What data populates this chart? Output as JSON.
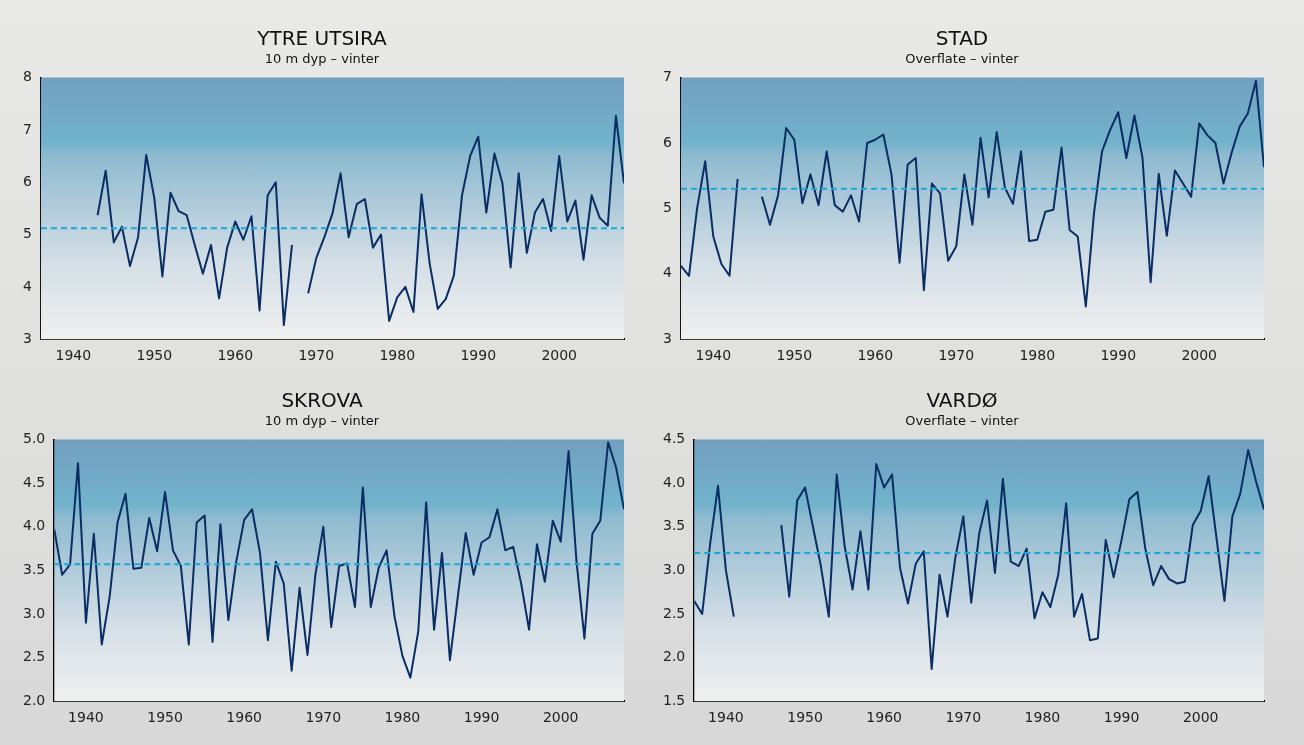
{
  "chart_data": [
    {
      "type": "line",
      "title": "YTRE UTSIRA",
      "subtitle": "10 m dyp – vinter",
      "x": [
        1943,
        1944,
        1945,
        1946,
        1947,
        1948,
        1949,
        1950,
        1951,
        1952,
        1953,
        1954,
        1955,
        1956,
        1957,
        1958,
        1959,
        1960,
        1961,
        1962,
        1963,
        1964,
        1965,
        1966,
        1967,
        1968,
        1969,
        1970,
        1971,
        1972,
        1973,
        1974,
        1975,
        1976,
        1977,
        1978,
        1979,
        1980,
        1981,
        1982,
        1983,
        1984,
        1985,
        1986,
        1987,
        1988,
        1989,
        1990,
        1991,
        1992,
        1993,
        1994,
        1995,
        1996,
        1997,
        1998,
        1999,
        2000,
        2001,
        2002,
        2003,
        2004,
        2005,
        2006,
        2007,
        2008
      ],
      "xlim": [
        1936,
        2008
      ],
      "xticks": [
        1940,
        1950,
        1960,
        1970,
        1980,
        1990,
        2000
      ],
      "ylim": [
        3,
        8
      ],
      "yticks": [
        3,
        4,
        5,
        6,
        7,
        8
      ],
      "grid": false,
      "legend": false,
      "marker": "none",
      "line_style": "solid",
      "series": [
        {
          "color": "#0a2d63",
          "values": [
            5.37,
            6.22,
            4.85,
            5.15,
            4.4,
            4.95,
            6.52,
            5.7,
            4.2,
            5.8,
            5.45,
            5.37,
            4.8,
            4.25,
            4.8,
            3.78,
            4.75,
            5.25,
            4.9,
            5.35,
            3.55,
            5.75,
            6.0,
            3.27,
            4.8,
            null,
            3.88,
            4.55,
            4.95,
            5.4,
            6.17,
            4.95,
            5.58,
            5.68,
            4.75,
            5.0,
            3.35,
            3.8,
            4.0,
            3.52,
            5.77,
            4.45,
            3.58,
            3.77,
            4.22,
            5.75,
            6.5,
            6.87,
            5.42,
            6.55,
            5.97,
            4.37,
            6.17,
            4.65,
            5.42,
            5.68,
            5.07,
            6.5,
            5.25,
            5.65,
            4.52,
            5.75,
            5.32,
            5.17,
            7.27,
            5.98
          ]
        }
      ],
      "ref_lines": [
        {
          "axis": "y",
          "value": 5.12,
          "color": "#19a8d8",
          "line_style": "dashed"
        }
      ]
    },
    {
      "type": "line",
      "title": "STAD",
      "subtitle": "Overflate – vinter",
      "x": [
        1936,
        1937,
        1938,
        1939,
        1940,
        1941,
        1942,
        1943,
        1944,
        1945,
        1946,
        1947,
        1948,
        1949,
        1950,
        1951,
        1952,
        1953,
        1954,
        1955,
        1956,
        1957,
        1958,
        1959,
        1960,
        1961,
        1962,
        1963,
        1964,
        1965,
        1966,
        1967,
        1968,
        1969,
        1970,
        1971,
        1972,
        1973,
        1974,
        1975,
        1976,
        1977,
        1978,
        1979,
        1980,
        1981,
        1982,
        1983,
        1984,
        1985,
        1986,
        1987,
        1988,
        1989,
        1990,
        1991,
        1992,
        1993,
        1994,
        1995,
        1996,
        1997,
        1998,
        1999,
        2000,
        2001,
        2002,
        2003,
        2004,
        2005,
        2006,
        2007,
        2008
      ],
      "xlim": [
        1936,
        2008
      ],
      "xticks": [
        1940,
        1950,
        1960,
        1970,
        1980,
        1990,
        2000
      ],
      "ylim": [
        3,
        7
      ],
      "yticks": [
        3,
        4,
        5,
        6,
        7
      ],
      "grid": false,
      "legend": false,
      "marker": "none",
      "line_style": "solid",
      "series": [
        {
          "color": "#0a2d63",
          "values": [
            4.12,
            3.97,
            5.0,
            5.72,
            4.57,
            4.15,
            3.97,
            5.45,
            null,
            null,
            5.18,
            4.75,
            5.2,
            6.23,
            6.05,
            5.08,
            5.52,
            5.05,
            5.87,
            5.05,
            4.95,
            5.2,
            4.8,
            6.0,
            6.05,
            6.13,
            5.52,
            4.17,
            5.67,
            5.77,
            3.75,
            5.38,
            5.23,
            4.2,
            4.42,
            5.52,
            4.75,
            6.08,
            5.17,
            6.17,
            5.32,
            5.07,
            5.87,
            4.5,
            4.52,
            4.95,
            4.98,
            5.93,
            4.67,
            4.57,
            3.5,
            4.92,
            5.87,
            6.2,
            6.47,
            5.77,
            6.42,
            5.77,
            3.87,
            5.53,
            4.58,
            5.58,
            5.38,
            5.18,
            6.3,
            6.12,
            6.0,
            5.38,
            5.85,
            6.25,
            6.45,
            6.95,
            5.63
          ]
        }
      ],
      "ref_lines": [
        {
          "axis": "y",
          "value": 5.3,
          "color": "#19a8d8",
          "line_style": "dashed"
        }
      ]
    },
    {
      "type": "line",
      "title": "SKROVA",
      "subtitle": "10 m dyp – vinter",
      "x": [
        1936,
        1937,
        1938,
        1939,
        1940,
        1941,
        1942,
        1943,
        1944,
        1945,
        1946,
        1947,
        1948,
        1949,
        1950,
        1951,
        1952,
        1953,
        1954,
        1955,
        1956,
        1957,
        1958,
        1959,
        1960,
        1961,
        1962,
        1963,
        1964,
        1965,
        1966,
        1967,
        1968,
        1969,
        1970,
        1971,
        1972,
        1973,
        1974,
        1975,
        1976,
        1977,
        1978,
        1979,
        1980,
        1981,
        1982,
        1983,
        1984,
        1985,
        1986,
        1987,
        1988,
        1989,
        1990,
        1991,
        1992,
        1993,
        1994,
        1995,
        1996,
        1997,
        1998,
        1999,
        2000,
        2001,
        2002,
        2003,
        2004,
        2005,
        2006,
        2007,
        2008
      ],
      "xlim": [
        1936,
        2008
      ],
      "xticks": [
        1940,
        1950,
        1960,
        1970,
        1980,
        1990,
        2000
      ],
      "ylim": [
        2,
        5
      ],
      "yticks": [
        {
          "value": 2,
          "label": "2.0"
        },
        2.5,
        {
          "value": 3,
          "label": "3.0"
        },
        3.5,
        {
          "value": 4,
          "label": "4.0"
        },
        4.5,
        {
          "value": 5,
          "label": "5.0"
        }
      ],
      "grid": false,
      "legend": false,
      "marker": "none",
      "line_style": "solid",
      "series": [
        {
          "color": "#0a2d63",
          "values": [
            3.97,
            3.45,
            3.57,
            4.73,
            2.9,
            3.92,
            2.65,
            3.2,
            4.05,
            4.38,
            3.52,
            3.53,
            4.1,
            3.72,
            4.4,
            3.73,
            3.55,
            2.65,
            4.05,
            4.13,
            2.68,
            4.03,
            2.93,
            3.6,
            4.08,
            4.2,
            3.7,
            2.7,
            3.6,
            3.35,
            2.35,
            3.3,
            2.53,
            3.45,
            4.0,
            2.85,
            3.55,
            3.58,
            3.08,
            4.45,
            3.08,
            3.53,
            3.73,
            2.97,
            2.52,
            2.27,
            2.8,
            4.28,
            2.82,
            3.7,
            2.47,
            3.2,
            3.93,
            3.45,
            3.82,
            3.88,
            4.2,
            3.73,
            3.77,
            3.35,
            2.82,
            3.8,
            3.37,
            4.07,
            3.83,
            4.87,
            3.6,
            2.72,
            3.92,
            4.07,
            4.97,
            4.68,
            4.2
          ]
        }
      ],
      "ref_lines": [
        {
          "axis": "y",
          "value": 3.57,
          "color": "#19a8d8",
          "line_style": "dashed"
        }
      ]
    },
    {
      "type": "line",
      "title": "VARDØ",
      "subtitle": "Overflate – vinter",
      "x": [
        1936,
        1937,
        1938,
        1939,
        1940,
        1941,
        1942,
        1943,
        1944,
        1945,
        1946,
        1947,
        1948,
        1949,
        1950,
        1951,
        1952,
        1953,
        1954,
        1955,
        1956,
        1957,
        1958,
        1959,
        1960,
        1961,
        1962,
        1963,
        1964,
        1965,
        1966,
        1967,
        1968,
        1969,
        1970,
        1971,
        1972,
        1973,
        1974,
        1975,
        1976,
        1977,
        1978,
        1979,
        1980,
        1981,
        1982,
        1983,
        1984,
        1985,
        1986,
        1987,
        1988,
        1989,
        1990,
        1991,
        1992,
        1993,
        1994,
        1995,
        1996,
        1997,
        1998,
        1999,
        2000,
        2001,
        2002,
        2003,
        2004,
        2005,
        2006,
        2007,
        2008
      ],
      "xlim": [
        1936,
        2008
      ],
      "xticks": [
        1940,
        1950,
        1960,
        1970,
        1980,
        1990,
        2000
      ],
      "ylim": [
        1.5,
        4.5
      ],
      "yticks": [
        1.5,
        {
          "value": 2,
          "label": "2.0"
        },
        2.5,
        {
          "value": 3,
          "label": "3.0"
        },
        3.5,
        {
          "value": 4,
          "label": "4.0"
        },
        4.5
      ],
      "grid": false,
      "legend": false,
      "marker": "none",
      "line_style": "solid",
      "series": [
        {
          "color": "#0a2d63",
          "values": [
            2.65,
            2.5,
            3.3,
            3.97,
            3.0,
            2.47,
            null,
            null,
            null,
            null,
            null,
            3.52,
            2.7,
            3.8,
            3.95,
            3.5,
            3.05,
            2.47,
            4.1,
            3.28,
            2.78,
            3.45,
            2.78,
            4.22,
            3.95,
            4.1,
            3.03,
            2.62,
            3.08,
            3.22,
            1.87,
            2.95,
            2.47,
            3.15,
            3.62,
            2.63,
            3.42,
            3.8,
            2.97,
            4.05,
            3.1,
            3.05,
            3.25,
            2.45,
            2.75,
            2.58,
            2.95,
            3.77,
            2.47,
            2.73,
            2.2,
            2.22,
            3.35,
            2.92,
            3.35,
            3.82,
            3.9,
            3.25,
            2.83,
            3.05,
            2.9,
            2.85,
            2.87,
            3.52,
            3.68,
            4.08,
            3.37,
            2.65,
            3.62,
            3.88,
            4.38,
            4.02,
            3.7
          ]
        }
      ],
      "ref_lines": [
        {
          "axis": "y",
          "value": 3.2,
          "color": "#19a8d8",
          "line_style": "dashed"
        }
      ]
    }
  ]
}
